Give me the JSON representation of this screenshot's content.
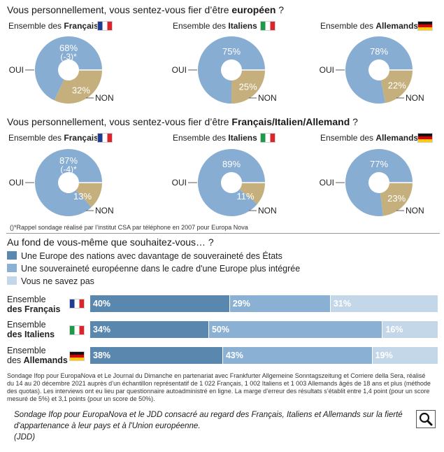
{
  "colors": {
    "dark": "#5a87ae",
    "mid": "#8ab0d3",
    "light": "#c3d7e8",
    "yes": "#88add2",
    "no": "#c5b07d",
    "bar_text": "#ffffff"
  },
  "q1": {
    "title_pre": "Vous personnellement, vous sentez-vous fier d’être ",
    "title_bold": "européen",
    "title_post": " ?"
  },
  "q2": {
    "title_pre": "Vous personnellement, vous sentez-vous fier d’être ",
    "title_bold": "Français/Italien/Allemand",
    "title_post": " ?"
  },
  "groups": [
    {
      "pre": "Ensemble des ",
      "bold": "Français",
      "flag": "fr"
    },
    {
      "pre": "Ensemble des ",
      "bold": "Italiens",
      "flag": "it"
    },
    {
      "pre": "Ensemble des ",
      "bold": "Allemands",
      "flag": "de"
    }
  ],
  "labels": {
    "oui": "OUI",
    "non": "NON"
  },
  "footnote_csa": "()*Rappel sondage réalisé par l’institut CSA par téléphone en 2007 pour Europa Nova",
  "q3": {
    "title": "Au fond de vous-même que souhaitez-vous… ?"
  },
  "row_labels": [
    {
      "line1": "Ensemble",
      "line2_pre": "",
      "line2_bold": "des Français"
    },
    {
      "line1": "Ensemble",
      "line2_pre": "",
      "line2_bold": "des Italiens"
    },
    {
      "line1": "Ensemble",
      "line2_pre": "des ",
      "line2_bold": "Allemands"
    }
  ],
  "chart_data": [
    {
      "type": "pie",
      "title": "Vous personnellement, vous sentez-vous fier d’être européen ?",
      "charts": [
        {
          "group": "Ensemble des Français",
          "categories": [
            "OUI",
            "NON"
          ],
          "values": [
            68,
            32
          ],
          "labels": [
            "68%",
            "32%"
          ],
          "change_label": "(-3)*"
        },
        {
          "group": "Ensemble des Italiens",
          "categories": [
            "OUI",
            "NON"
          ],
          "values": [
            75,
            25
          ],
          "labels": [
            "75%",
            "25%"
          ],
          "change_label": ""
        },
        {
          "group": "Ensemble des Allemands",
          "categories": [
            "OUI",
            "NON"
          ],
          "values": [
            78,
            22
          ],
          "labels": [
            "78%",
            "22%"
          ],
          "change_label": ""
        }
      ]
    },
    {
      "type": "pie",
      "title": "Vous personnellement, vous sentez-vous fier d’être Français/Italien/Allemand ?",
      "charts": [
        {
          "group": "Ensemble des Français",
          "categories": [
            "OUI",
            "NON"
          ],
          "values": [
            87,
            13
          ],
          "labels": [
            "87%",
            "13%"
          ],
          "change_label": "(-4)*"
        },
        {
          "group": "Ensemble des Italiens",
          "categories": [
            "OUI",
            "NON"
          ],
          "values": [
            89,
            11
          ],
          "labels": [
            "89%",
            "11%"
          ],
          "change_label": ""
        },
        {
          "group": "Ensemble des Allemands",
          "categories": [
            "OUI",
            "NON"
          ],
          "values": [
            77,
            23
          ],
          "labels": [
            "77%",
            "23%"
          ],
          "change_label": ""
        }
      ]
    },
    {
      "type": "bar",
      "orientation": "horizontal-stacked",
      "title": "Au fond de vous-même que souhaitez-vous… ?",
      "categories": [
        "Ensemble des Français",
        "Ensemble des Italiens",
        "Ensemble des Allemands"
      ],
      "series": [
        {
          "name": "Une Europe des nations avec davantage de souveraineté des États",
          "values": [
            40,
            34,
            38
          ],
          "labels": [
            "40%",
            "34%",
            "38%"
          ]
        },
        {
          "name": "Une souveraineté européenne dans le cadre d'une Europe plus intégrée",
          "values": [
            29,
            50,
            43
          ],
          "labels": [
            "29%",
            "50%",
            "43%"
          ]
        },
        {
          "name": "Vous ne savez pas",
          "values": [
            31,
            16,
            19
          ],
          "labels": [
            "31%",
            "16%",
            "19%"
          ]
        }
      ],
      "xlim": [
        0,
        100
      ]
    }
  ],
  "methodology": "Sondage Ifop pour EuropaNova et Le Journal du Dimanche en partenariat avec Frankfurter Allgemeine Sonntagszeitung et Corriere della  Sera, réalisé du 14 au 20 décembre 2021 auprès d’un échantillon représentatif de 1 022 Français, 1 002 Italiens et 1 003 Allemands âgés de 18 ans et plus (méthode des quotas). Les interviews ont eu lieu par questionnaire autoadministré en ligne. La marge d’erreur des résultats s’établit entre 1,4 point (pour un score mesuré de 5%) et 3,1 points (pour un score de 50%).",
  "caption": {
    "text": "Sondage Ifop pour EuropaNova et le JDD consacré au regard des Français, Italiens et Allemands sur la fierté d'appartenance à leur pays et à l'Union européenne.",
    "source": "(JDD)"
  },
  "search_icon": "magnifier-icon"
}
